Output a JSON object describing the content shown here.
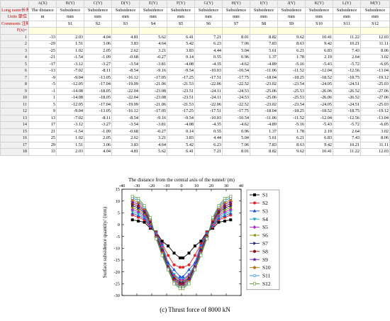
{
  "sheet": {
    "columns": [
      "",
      "A(X)",
      "B(Y)",
      "C(Y)",
      "D(Y)",
      "E(Y)",
      "F(Y)",
      "G(Y)",
      "H(Y)",
      "I(Y)",
      "J(Y)",
      "K(Y)",
      "L(Y)",
      "M(Y)"
    ],
    "meta_rows": [
      {
        "label": "Long name长名称",
        "cells": [
          "The distance",
          "Subsidence",
          "Subsidence",
          "Subsidence",
          "Subsidence",
          "Subsidence",
          "Subsidence",
          "Subsidence",
          "Subsidence",
          "Subsidence",
          "Subsidence",
          "Subsidence",
          "Subsidence"
        ]
      },
      {
        "label": "Units 单位",
        "cells": [
          "m",
          "mm",
          "mm",
          "mm",
          "mm",
          "mm",
          "mm",
          "mm",
          "mm",
          "mm",
          "mm",
          "mm",
          "mm"
        ]
      },
      {
        "label": "Comments 注释",
        "cells": [
          "",
          "S1",
          "S2",
          "S3",
          "S4",
          "S5",
          "S6",
          "S7",
          "S8",
          "S9",
          "S10",
          "S11",
          "S12"
        ]
      },
      {
        "label": "F(x)=",
        "cells": [
          "",
          "",
          "",
          "",
          "",
          "",
          "",
          "",
          "",
          "",
          "",
          "",
          ""
        ]
      }
    ],
    "rows": [
      {
        "n": "1",
        "cells": [
          "-33",
          "2.03",
          "4.04",
          "4.81",
          "5.62",
          "6.41",
          "7.21",
          "8.01",
          "8.82",
          "9.62",
          "10.41",
          "11.22",
          "12.03"
        ]
      },
      {
        "n": "2",
        "cells": [
          "-29",
          "1.51",
          "3.06",
          "3.83",
          "4.64",
          "5.42",
          "6.23",
          "7.06",
          "7.83",
          "8.63",
          "9.42",
          "10.21",
          "11.11"
        ]
      },
      {
        "n": "3",
        "cells": [
          "-25",
          "1.02",
          "2.05",
          "2.62",
          "3.21",
          "3.83",
          "4.44",
          "5.04",
          "5.61",
          "6.21",
          "6.83",
          "7.43",
          "8.06"
        ]
      },
      {
        "n": "4",
        "cells": [
          "-21",
          "-1.54",
          "-1.09",
          "-0.68",
          "-0.27",
          "0.14",
          "0.55",
          "0.96",
          "1.37",
          "1.78",
          "2.19",
          "2.64",
          "3.02"
        ]
      },
      {
        "n": "5",
        "cells": [
          "-17",
          "-3.12",
          "-3.27",
          "-3.54",
          "-3.81",
          "-4.08",
          "-4.35",
          "-4.62",
          "-4.89",
          "-5.16",
          "-5.43",
          "-5.72",
          "-6.05"
        ]
      },
      {
        "n": "6",
        "cells": [
          "-13",
          "-7.02",
          "-8.11",
          "-8.54",
          "-9.16",
          "-9.54",
          "-10.03",
          "-10.54",
          "-11.06",
          "-11.52",
          "-12.04",
          "-12.56",
          "-13.04"
        ]
      },
      {
        "n": "7",
        "cells": [
          "-9",
          "-9.04",
          "-13.05",
          "-16.12",
          "-17.05",
          "-17.25",
          "-17.51",
          "-17.75",
          "-18.04",
          "-18.25",
          "-18.52",
          "-18.75",
          "-19.12"
        ]
      },
      {
        "n": "8",
        "cells": [
          "-5",
          "-12.05",
          "-17.04",
          "-19.09",
          "-21.06",
          "-21.53",
          "-22.06",
          "-22.52",
          "-23.02",
          "-23.54",
          "-24.05",
          "-24.51",
          "-25.03"
        ]
      },
      {
        "n": "9",
        "cells": [
          "-1",
          "-14.08",
          "-18.05",
          "-22.04",
          "-23.08",
          "-23.51",
          "-24.11",
          "-24.53",
          "-25.06",
          "-25.53",
          "-26.06",
          "-26.52",
          "-27.06"
        ]
      },
      {
        "n": "10",
        "cells": [
          "1",
          "-14.08",
          "-18.05",
          "-22.04",
          "-23.08",
          "-23.51",
          "-24.11",
          "-24.53",
          "-25.06",
          "-25.53",
          "-26.06",
          "-26.52",
          "-27.06"
        ]
      },
      {
        "n": "11",
        "cells": [
          "5",
          "-12.05",
          "-17.04",
          "-19.09",
          "-21.06",
          "-21.53",
          "-22.06",
          "-22.52",
          "-23.02",
          "-23.54",
          "-24.05",
          "-24.51",
          "-25.03"
        ]
      },
      {
        "n": "12",
        "cells": [
          "9",
          "-9.04",
          "-13.05",
          "-16.12",
          "-17.05",
          "-17.25",
          "-17.51",
          "-17.75",
          "-18.04",
          "-18.25",
          "-18.52",
          "-18.75",
          "-19.12"
        ]
      },
      {
        "n": "13",
        "cells": [
          "13",
          "-7.02",
          "-8.11",
          "-8.54",
          "-9.16",
          "-9.54",
          "-10.03",
          "-10.54",
          "-11.06",
          "-11.52",
          "-12.04",
          "-12.56",
          "-13.04"
        ]
      },
      {
        "n": "14",
        "cells": [
          "17",
          "-3.12",
          "-3.27",
          "-3.54",
          "-3.81",
          "-4.08",
          "-4.35",
          "-4.62",
          "-4.89",
          "-5.16",
          "-5.43",
          "-5.72",
          "-6.05"
        ]
      },
      {
        "n": "15",
        "cells": [
          "21",
          "-1.54",
          "-1.09",
          "-0.68",
          "-0.27",
          "0.14",
          "0.55",
          "0.96",
          "1.37",
          "1.78",
          "2.19",
          "2.64",
          "3.02"
        ]
      },
      {
        "n": "16",
        "cells": [
          "25",
          "1.02",
          "2.05",
          "2.62",
          "3.21",
          "3.83",
          "4.44",
          "5.04",
          "5.61",
          "6.21",
          "6.83",
          "7.43",
          "8.06"
        ]
      },
      {
        "n": "17",
        "cells": [
          "29",
          "1.51",
          "3.06",
          "3.83",
          "4.64",
          "5.42",
          "6.23",
          "7.06",
          "7.83",
          "8.63",
          "9.42",
          "10.21",
          "11.11"
        ]
      },
      {
        "n": "18",
        "cells": [
          "33",
          "2.03",
          "4.04",
          "4.81",
          "5.62",
          "6.41",
          "7.21",
          "8.01",
          "8.82",
          "9.62",
          "10.41",
          "11.22",
          "12.03"
        ]
      }
    ]
  },
  "chart_data": {
    "type": "line",
    "title": "",
    "xlabel": "The distance from the central axis of the tunnel/ (m)",
    "ylabel": "Surface subsidence quantity/ (mm)",
    "xlim": [
      -40,
      40
    ],
    "ylim": [
      -30,
      15
    ],
    "xticks": [
      -40,
      -30,
      -20,
      -10,
      0,
      10,
      20,
      30,
      40
    ],
    "yticks": [
      -30,
      -25,
      -20,
      -15,
      -10,
      -5,
      0,
      5,
      10,
      15
    ],
    "legend_position": "right",
    "x": [
      -33,
      -29,
      -25,
      -21,
      -17,
      -13,
      -9,
      -5,
      -1,
      1,
      5,
      9,
      13,
      17,
      21,
      25,
      29,
      33
    ],
    "series": [
      {
        "name": "S1",
        "color": "#000000",
        "marker": "square",
        "values": [
          2.03,
          1.51,
          1.02,
          -1.54,
          -3.12,
          -7.02,
          -9.04,
          -12.05,
          -14.08,
          -14.08,
          -12.05,
          -9.04,
          -7.02,
          -3.12,
          -1.54,
          1.02,
          1.51,
          2.03
        ]
      },
      {
        "name": "S2",
        "color": "#e8232a",
        "marker": "circle",
        "values": [
          4.04,
          3.06,
          2.05,
          -1.09,
          -3.27,
          -8.11,
          -13.05,
          -17.04,
          -18.05,
          -18.05,
          -17.04,
          -13.05,
          -8.11,
          -3.27,
          -1.09,
          2.05,
          3.06,
          4.04
        ]
      },
      {
        "name": "S3",
        "color": "#1f4fd8",
        "marker": "triangle-up",
        "values": [
          4.81,
          3.83,
          2.62,
          -0.68,
          -3.54,
          -8.54,
          -16.12,
          -19.09,
          -22.04,
          -22.04,
          -19.09,
          -16.12,
          -8.54,
          -3.54,
          -0.68,
          2.62,
          3.83,
          4.81
        ]
      },
      {
        "name": "S4",
        "color": "#16a5b8",
        "marker": "triangle-down",
        "values": [
          5.62,
          4.64,
          3.21,
          -0.27,
          -3.81,
          -9.16,
          -17.05,
          -21.06,
          -23.08,
          -23.08,
          -21.06,
          -17.05,
          -9.16,
          -3.81,
          -0.27,
          3.21,
          4.64,
          5.62
        ]
      },
      {
        "name": "S5",
        "color": "#b51fd4",
        "marker": "diamond",
        "values": [
          6.41,
          5.42,
          3.83,
          0.14,
          -4.08,
          -9.54,
          -17.25,
          -21.53,
          -23.51,
          -23.51,
          -21.53,
          -17.25,
          -9.54,
          -4.08,
          0.14,
          3.83,
          5.42,
          6.41
        ]
      },
      {
        "name": "S6",
        "color": "#8c8c10",
        "marker": "triangle-left",
        "values": [
          7.21,
          6.23,
          4.44,
          0.55,
          -4.35,
          -10.03,
          -17.51,
          -22.06,
          -24.11,
          -24.11,
          -22.06,
          -17.51,
          -10.03,
          -4.35,
          0.55,
          4.44,
          6.23,
          7.21
        ]
      },
      {
        "name": "S7",
        "color": "#1a237e",
        "marker": "triangle-right",
        "values": [
          8.01,
          7.06,
          5.04,
          0.96,
          -4.62,
          -10.54,
          -17.75,
          -22.52,
          -24.53,
          -24.53,
          -22.52,
          -17.75,
          -10.54,
          -4.62,
          0.96,
          5.04,
          7.06,
          8.01
        ]
      },
      {
        "name": "S8",
        "color": "#8b1a1a",
        "marker": "hexagon",
        "values": [
          8.82,
          7.83,
          5.61,
          1.37,
          -4.89,
          -11.06,
          -18.04,
          -23.02,
          -25.06,
          -25.06,
          -23.02,
          -18.04,
          -11.06,
          -4.89,
          1.37,
          5.61,
          7.83,
          8.82
        ]
      },
      {
        "name": "S9",
        "color": "#6a1b9a",
        "marker": "star",
        "values": [
          9.62,
          8.63,
          6.21,
          1.78,
          -5.16,
          -11.52,
          -18.25,
          -23.54,
          -25.53,
          -25.53,
          -23.54,
          -18.25,
          -11.52,
          -5.16,
          1.78,
          6.21,
          8.63,
          9.62
        ]
      },
      {
        "name": "S10",
        "color": "#c07010",
        "marker": "pentagon",
        "values": [
          10.41,
          9.42,
          6.83,
          2.19,
          -5.43,
          -12.04,
          -18.52,
          -24.05,
          -26.06,
          -26.06,
          -24.05,
          -18.52,
          -12.04,
          -5.43,
          2.19,
          6.83,
          9.42,
          10.41
        ]
      },
      {
        "name": "S11",
        "color": "#1e88e5",
        "marker": "circle-open",
        "values": [
          11.22,
          10.21,
          7.43,
          2.64,
          -5.72,
          -12.56,
          -18.75,
          -24.51,
          -26.52,
          -26.52,
          -24.51,
          -18.75,
          -12.56,
          -5.72,
          2.64,
          7.43,
          10.21,
          11.22
        ]
      },
      {
        "name": "S12",
        "color": "#558b2f",
        "marker": "square-open",
        "values": [
          12.03,
          11.11,
          8.06,
          3.02,
          -6.05,
          -13.04,
          -19.12,
          -25.03,
          -27.06,
          -27.06,
          -25.03,
          -19.12,
          -13.04,
          -6.05,
          3.02,
          8.06,
          11.11,
          12.03
        ]
      }
    ]
  },
  "caption": "(c) Thrust force of 8000 kN"
}
